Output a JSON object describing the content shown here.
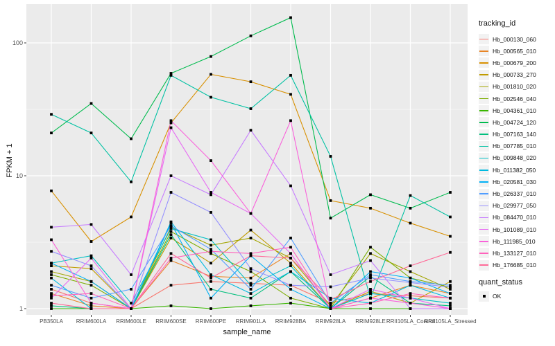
{
  "axes": {
    "y_title": "FPKM + 1",
    "x_title": "sample_name"
  },
  "legend": {
    "tracking_title": "tracking_id",
    "quant_title": "quant_status",
    "quant_ok_label": "OK"
  },
  "chart_data": {
    "type": "line",
    "title": "",
    "xlabel": "sample_name",
    "ylabel": "FPKM + 1",
    "y_scale": "log10",
    "ylim": [
      1,
      196
    ],
    "y_ticks": [
      1,
      10,
      100
    ],
    "y_tick_labels": [
      "1",
      "10",
      "100"
    ],
    "y_minor_ticks": [
      3.162,
      31.62
    ],
    "grid": "on",
    "panel_bg": "#EBEBEB",
    "grid_color": "#FFFFFF",
    "point_color": "#000000",
    "legend_position": "right",
    "quant_status": {
      "title": "quant_status",
      "items": [
        "OK"
      ]
    },
    "categories": [
      "PB350LA",
      "RRIM600LA",
      "RRIM600LE",
      "RRIM600SE",
      "RRIM600PE",
      "RRIM901LA",
      "RRIM928BA",
      "RRIM928LA",
      "RRIM928LE",
      "RRII105LA_Control",
      "RRII105LA_Stressed"
    ],
    "series": [
      {
        "name": "Hb_000130_060",
        "color": "#F8766D",
        "values": [
          1.4,
          1.1,
          1.0,
          1.5,
          1.6,
          1.55,
          1.5,
          1.1,
          1.3,
          1.25,
          1.2
        ]
      },
      {
        "name": "Hb_000565_010",
        "color": "#E88526",
        "values": [
          1.3,
          1.05,
          1.0,
          2.3,
          1.75,
          1.7,
          2.6,
          1.0,
          1.2,
          1.5,
          1.3
        ]
      },
      {
        "name": "Hb_000679_200",
        "color": "#D89000",
        "values": [
          7.7,
          3.2,
          4.9,
          25,
          58,
          51,
          41,
          6.5,
          5.7,
          4.4,
          3.5
        ]
      },
      {
        "name": "Hb_000733_270",
        "color": "#C09B00",
        "values": [
          2.1,
          2.0,
          1.0,
          3.4,
          2.2,
          3.9,
          2.2,
          1.0,
          1.35,
          1.1,
          1.6
        ]
      },
      {
        "name": "Hb_001810_020",
        "color": "#A3A500",
        "values": [
          1.9,
          1.6,
          1.0,
          4.1,
          3.0,
          3.4,
          2.4,
          1.05,
          2.6,
          1.9,
          1.4
        ]
      },
      {
        "name": "Hb_002546_040",
        "color": "#7CAE00",
        "values": [
          1.8,
          1.5,
          1.0,
          3.8,
          2.6,
          1.9,
          1.2,
          1.0,
          2.9,
          1.7,
          1.45
        ]
      },
      {
        "name": "Hb_004361_010",
        "color": "#39B600",
        "values": [
          1.0,
          1.0,
          1.0,
          1.05,
          1.0,
          1.05,
          1.1,
          1.0,
          1.0,
          1.0,
          1.0
        ]
      },
      {
        "name": "Hb_004724_120",
        "color": "#00BB4E",
        "values": [
          21,
          35,
          19,
          59,
          79,
          113,
          155,
          4.8,
          7.2,
          5.7,
          7.5
        ]
      },
      {
        "name": "Hb_007163_140",
        "color": "#00BF7D",
        "values": [
          1.05,
          1.0,
          1.0,
          3.6,
          1.4,
          1.2,
          1.9,
          1.0,
          1.75,
          1.1,
          1.05
        ]
      },
      {
        "name": "Hb_007785_010",
        "color": "#00C1A3",
        "values": [
          29,
          21,
          9,
          57,
          39,
          32,
          57,
          14,
          1.2,
          7.1,
          4.9
        ]
      },
      {
        "name": "Hb_009848_020",
        "color": "#00BFC4",
        "values": [
          2.2,
          2.5,
          1.1,
          4.0,
          3.3,
          1.5,
          2.1,
          1.0,
          1.3,
          1.2,
          1.1
        ]
      },
      {
        "name": "Hb_011382_050",
        "color": "#00BAE0",
        "values": [
          1.7,
          1.0,
          1.0,
          4.5,
          1.8,
          1.3,
          1.9,
          1.2,
          1.1,
          1.5,
          1.2
        ]
      },
      {
        "name": "Hb_020581_030",
        "color": "#00B0F6",
        "values": [
          2.2,
          1.6,
          1.0,
          4.4,
          1.2,
          2.5,
          1.4,
          1.0,
          1.9,
          1.7,
          1.3
        ]
      },
      {
        "name": "Hb_026337_010",
        "color": "#529EFF",
        "values": [
          1.5,
          1.2,
          1.4,
          4.2,
          2.8,
          1.4,
          3.4,
          1.1,
          1.8,
          1.6,
          1.5
        ]
      },
      {
        "name": "Hb_029977_050",
        "color": "#9590FF",
        "values": [
          2.7,
          2.1,
          1.0,
          7.5,
          5.3,
          2.0,
          1.5,
          1.46,
          1.7,
          1.57,
          1.45
        ]
      },
      {
        "name": "Hb_084470_010",
        "color": "#C77CFF",
        "values": [
          4.1,
          4.3,
          1.8,
          10,
          7.2,
          22,
          8.4,
          1.8,
          2.3,
          1.0,
          1.0
        ]
      },
      {
        "name": "Hb_101089_010",
        "color": "#E76BF3",
        "values": [
          1.2,
          2.4,
          1.0,
          23,
          7.5,
          5.2,
          2.6,
          1.0,
          1.4,
          1.2,
          1.0
        ]
      },
      {
        "name": "Hb_111985_010",
        "color": "#FA62DB",
        "values": [
          3.3,
          1.1,
          1.0,
          26,
          13,
          5.2,
          26,
          1.0,
          1.2,
          1.1,
          1.0
        ]
      },
      {
        "name": "Hb_133127_010",
        "color": "#FF62BC",
        "values": [
          1.25,
          1.3,
          1.0,
          2.4,
          2.7,
          2.6,
          2.9,
          1.0,
          1.1,
          1.3,
          1.2
        ]
      },
      {
        "name": "Hb_176685_010",
        "color": "#FF6A98",
        "values": [
          1.1,
          1.0,
          1.0,
          2.6,
          1.7,
          2.5,
          2.4,
          1.17,
          1.6,
          2.1,
          2.65
        ]
      }
    ]
  }
}
